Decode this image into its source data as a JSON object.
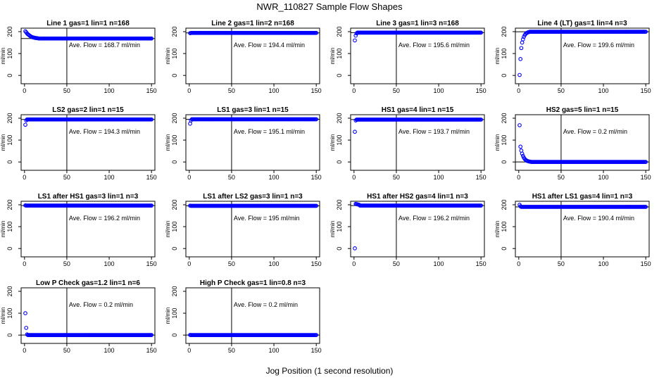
{
  "page": {
    "title": "NWR_110827  Sample Flow Shapes",
    "xlabel": "Jog Position (1 second resolution)"
  },
  "style": {
    "point_color": "#0000ff",
    "axis_color": "#000000"
  },
  "chart_data": [
    {
      "type": "scatter",
      "title": "Line 1 gas=1 lin=1 n=168",
      "ylabel": "ml/min",
      "annotation": "Ave. Flow = 168.7  ml/min",
      "ref_hline": 168.7,
      "ref_vline": 50,
      "xlim": [
        0,
        150
      ],
      "ylim": [
        0,
        200
      ],
      "xticks": [
        0,
        50,
        100,
        150
      ],
      "yticks": [
        0,
        100,
        200
      ],
      "start_values": [
        202,
        197,
        192,
        188,
        185,
        182,
        179,
        177,
        175,
        174,
        173,
        172,
        171,
        170.5,
        170,
        169.5
      ],
      "plateau": 168.7,
      "n_points": 150
    },
    {
      "type": "scatter",
      "title": "Line 2 gas=1 lin=2 n=168",
      "ylabel": "ml/min",
      "annotation": "Ave. Flow = 194.4  ml/min",
      "ref_hline": 194.4,
      "ref_vline": 50,
      "xlim": [
        0,
        150
      ],
      "ylim": [
        0,
        200
      ],
      "xticks": [
        0,
        50,
        100,
        150
      ],
      "yticks": [
        0,
        100,
        200
      ],
      "start_values": [
        193,
        194
      ],
      "plateau": 194.4,
      "n_points": 150
    },
    {
      "type": "scatter",
      "title": "Line 3 gas=1 lin=3 n=168",
      "ylabel": "ml/min",
      "annotation": "Ave. Flow = 195.6  ml/min",
      "ref_hline": 195.6,
      "ref_vline": 50,
      "xlim": [
        0,
        150
      ],
      "ylim": [
        0,
        200
      ],
      "xticks": [
        0,
        50,
        100,
        150
      ],
      "yticks": [
        0,
        100,
        200
      ],
      "start_values": [
        160,
        182,
        192
      ],
      "plateau": 195.6,
      "n_points": 150
    },
    {
      "type": "scatter",
      "title": "Line 4 (LT) gas=1 lin=4 n=3",
      "ylabel": "ml/min",
      "annotation": "Ave. Flow = 199.6  ml/min",
      "ref_hline": 199.6,
      "ref_vline": 50,
      "xlim": [
        0,
        150
      ],
      "ylim": [
        0,
        200
      ],
      "xticks": [
        0,
        50,
        100,
        150
      ],
      "yticks": [
        0,
        100,
        200
      ],
      "start_values": [
        2,
        75,
        125,
        150,
        165,
        176,
        184,
        189,
        193,
        195,
        197,
        198
      ],
      "plateau": 199.6,
      "n_points": 150
    },
    {
      "type": "scatter",
      "title": "LS2 gas=2 lin=1 n=15",
      "ylabel": "ml/min",
      "annotation": "Ave. Flow = 194.3  ml/min",
      "ref_hline": 194.3,
      "ref_vline": 50,
      "xlim": [
        0,
        150
      ],
      "ylim": [
        0,
        200
      ],
      "xticks": [
        0,
        50,
        100,
        150
      ],
      "yticks": [
        0,
        100,
        200
      ],
      "start_values": [
        170,
        190
      ],
      "plateau": 194.3,
      "n_points": 150
    },
    {
      "type": "scatter",
      "title": "LS1 gas=3 lin=1 n=15",
      "ylabel": "ml/min",
      "annotation": "Ave. Flow = 195.1  ml/min",
      "ref_hline": 195.1,
      "ref_vline": 50,
      "xlim": [
        0,
        150
      ],
      "ylim": [
        0,
        200
      ],
      "xticks": [
        0,
        50,
        100,
        150
      ],
      "yticks": [
        0,
        100,
        200
      ],
      "start_values": [
        175,
        190
      ],
      "plateau": 195.1,
      "n_points": 150
    },
    {
      "type": "scatter",
      "title": "HS1 gas=4 lin=1 n=15",
      "ylabel": "ml/min",
      "annotation": "Ave. Flow = 193.7  ml/min",
      "ref_hline": 193.7,
      "ref_vline": 50,
      "xlim": [
        0,
        150
      ],
      "ylim": [
        0,
        200
      ],
      "xticks": [
        0,
        50,
        100,
        150
      ],
      "yticks": [
        0,
        100,
        200
      ],
      "start_values": [
        138,
        190
      ],
      "plateau": 193.7,
      "n_points": 150
    },
    {
      "type": "scatter",
      "title": "HS2 gas=5 lin=1 n=15",
      "ylabel": "ml/min",
      "annotation": "Ave. Flow = 0.2  ml/min",
      "ref_hline": 0.2,
      "ref_vline": 50,
      "xlim": [
        0,
        150
      ],
      "ylim": [
        0,
        200
      ],
      "xticks": [
        0,
        50,
        100,
        150
      ],
      "yticks": [
        0,
        100,
        200
      ],
      "start_values": [
        168,
        70,
        52,
        38,
        28,
        20,
        14,
        10,
        7,
        5,
        3.5,
        2.5,
        1.5,
        1
      ],
      "plateau": 0.2,
      "n_points": 150
    },
    {
      "type": "scatter",
      "title": "LS1 after HS1 gas=3 lin=1 n=3",
      "ylabel": "ml/min",
      "annotation": "Ave. Flow = 196.2  ml/min",
      "ref_hline": 196.2,
      "ref_vline": 50,
      "xlim": [
        0,
        150
      ],
      "ylim": [
        0,
        200
      ],
      "xticks": [
        0,
        50,
        100,
        150
      ],
      "yticks": [
        0,
        100,
        200
      ],
      "start_values": [
        197
      ],
      "plateau": 196.2,
      "n_points": 150
    },
    {
      "type": "scatter",
      "title": "LS1 after LS2 gas=3 lin=1 n=3",
      "ylabel": "ml/min",
      "annotation": "Ave. Flow = 195  ml/min",
      "ref_hline": 195,
      "ref_vline": 50,
      "xlim": [
        0,
        150
      ],
      "ylim": [
        0,
        200
      ],
      "xticks": [
        0,
        50,
        100,
        150
      ],
      "yticks": [
        0,
        100,
        200
      ],
      "start_values": [
        196
      ],
      "plateau": 195,
      "n_points": 150
    },
    {
      "type": "scatter",
      "title": "HS1 after HS2 gas=4 lin=1 n=3",
      "ylabel": "ml/min",
      "annotation": "Ave. Flow = 196.2  ml/min",
      "ref_hline": 196.2,
      "ref_vline": 50,
      "xlim": [
        0,
        150
      ],
      "ylim": [
        0,
        200
      ],
      "xticks": [
        0,
        50,
        100,
        150
      ],
      "yticks": [
        0,
        100,
        200
      ],
      "start_values": [
        1,
        204,
        203,
        202,
        201,
        200
      ],
      "plateau": 196.2,
      "n_points": 150
    },
    {
      "type": "scatter",
      "title": "HS1 after LS1 gas=4 lin=1 n=3",
      "ylabel": "ml/min",
      "annotation": "Ave. Flow = 190.4  ml/min",
      "ref_hline": 190.4,
      "ref_vline": 50,
      "xlim": [
        0,
        150
      ],
      "ylim": [
        0,
        200
      ],
      "xticks": [
        0,
        50,
        100,
        150
      ],
      "yticks": [
        0,
        100,
        200
      ],
      "start_values": [
        200,
        193
      ],
      "plateau": 190.4,
      "n_points": 150
    },
    {
      "type": "scatter",
      "title": "Low P Check gas=1.2 lin=1 n=6",
      "ylabel": "ml/min",
      "annotation": "Ave. Flow = 0.2  ml/min",
      "ref_hline": 0.2,
      "ref_vline": 50,
      "xlim": [
        0,
        150
      ],
      "ylim": [
        0,
        200
      ],
      "xticks": [
        0,
        50,
        100,
        150
      ],
      "yticks": [
        0,
        100,
        200
      ],
      "start_values": [
        100,
        33,
        3
      ],
      "plateau": 0.2,
      "n_points": 150
    },
    {
      "type": "scatter",
      "title": "High P Check gas=1 lin=0.8 n=3",
      "ylabel": "ml/min",
      "annotation": "Ave. Flow = 0.2  ml/min",
      "ref_hline": 0.2,
      "ref_vline": 50,
      "xlim": [
        0,
        150
      ],
      "ylim": [
        0,
        200
      ],
      "xticks": [
        0,
        50,
        100,
        150
      ],
      "yticks": [
        0,
        100,
        200
      ],
      "start_values": [
        0.5
      ],
      "plateau": 0.2,
      "n_points": 150
    }
  ]
}
